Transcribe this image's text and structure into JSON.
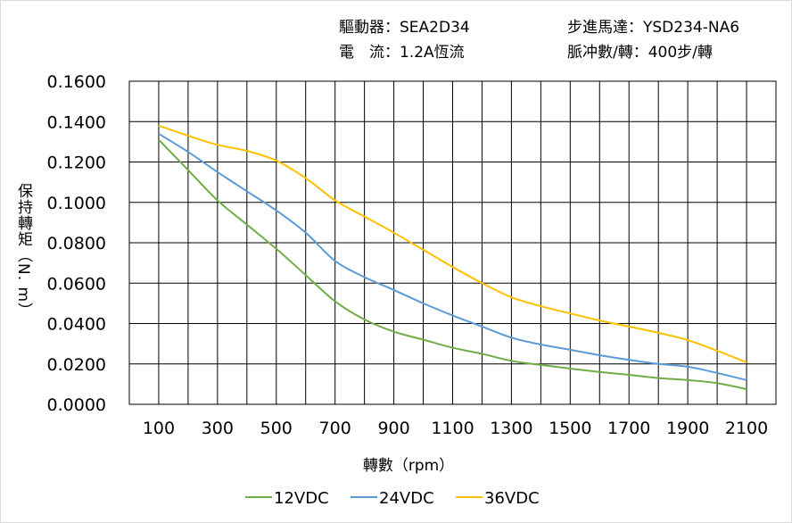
{
  "header": {
    "driver": "驅動器：SEA2D34",
    "current": "電　流：1.2A恆流",
    "motor": "步進馬達：YSD234-NA6",
    "pulses": "脈冲數/轉：400步/轉"
  },
  "chart_data": {
    "type": "line",
    "xlabel": "轉數（rpm）",
    "ylabel": "保持轉矩（N. m）",
    "xlim": [
      0,
      2200
    ],
    "ylim": [
      0,
      0.16
    ],
    "x_ticks": [
      "100",
      "300",
      "500",
      "700",
      "900",
      "1100",
      "1300",
      "1500",
      "1700",
      "1900",
      "2100"
    ],
    "y_ticks": [
      "0.0000",
      "0.0200",
      "0.0400",
      "0.0600",
      "0.0800",
      "0.1000",
      "0.1200",
      "0.1400",
      "0.1600"
    ],
    "grid": true,
    "legend_position": "bottom",
    "x": [
      100,
      200,
      300,
      400,
      500,
      600,
      700,
      800,
      900,
      1000,
      1100,
      1200,
      1300,
      1400,
      1500,
      1600,
      1700,
      1800,
      1900,
      2000,
      2100
    ],
    "series": [
      {
        "name": "12VDC",
        "color": "#70ad47",
        "values": [
          0.131,
          0.116,
          0.101,
          0.089,
          0.077,
          0.064,
          0.051,
          0.042,
          0.036,
          0.032,
          0.028,
          0.025,
          0.0215,
          0.0195,
          0.0177,
          0.016,
          0.0146,
          0.013,
          0.012,
          0.0105,
          0.0075
        ]
      },
      {
        "name": "24VDC",
        "color": "#5b9bd5",
        "values": [
          0.134,
          0.125,
          0.115,
          0.1055,
          0.096,
          0.085,
          0.071,
          0.063,
          0.0566,
          0.05,
          0.044,
          0.0385,
          0.033,
          0.0296,
          0.027,
          0.0243,
          0.022,
          0.02,
          0.0186,
          0.0155,
          0.012
        ]
      },
      {
        "name": "36VDC",
        "color": "#ffc000",
        "values": [
          0.138,
          0.133,
          0.1285,
          0.1255,
          0.1207,
          0.112,
          0.101,
          0.093,
          0.085,
          0.0765,
          0.068,
          0.06,
          0.053,
          0.0486,
          0.045,
          0.0415,
          0.0385,
          0.0354,
          0.0318,
          0.0265,
          0.0208
        ]
      }
    ]
  }
}
